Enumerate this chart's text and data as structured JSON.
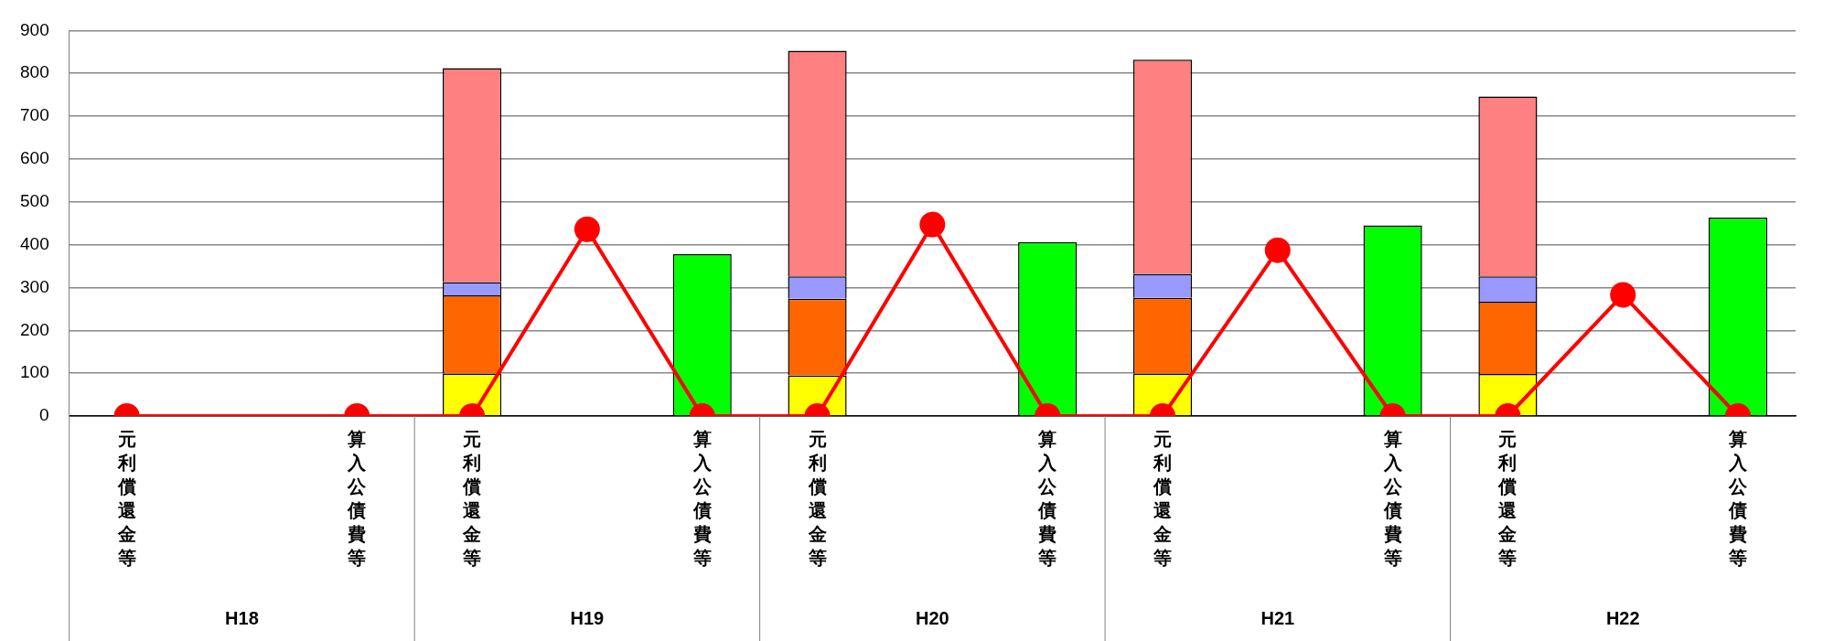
{
  "chart_data": {
    "type": "bar",
    "stacked": true,
    "categories": [
      "元利償還金等",
      null,
      "算入公債費等",
      "元利償還金等",
      null,
      "算入公債費等",
      "元利償還金等",
      null,
      "算入公債費等",
      "元利償還金等",
      null,
      "算入公債費等",
      "元利償還金等",
      null,
      "算入公債費等"
    ],
    "series": [
      {
        "color": "#ffff00",
        "values": [
          null,
          null,
          null,
          99,
          null,
          null,
          95,
          null,
          null,
          99,
          null,
          null,
          98,
          null,
          null
        ]
      },
      {
        "color": "#ff6600",
        "values": [
          null,
          null,
          null,
          183,
          null,
          null,
          179,
          null,
          null,
          177,
          null,
          null,
          169,
          null,
          null
        ]
      },
      {
        "color": "#9999ff",
        "values": [
          null,
          null,
          null,
          31,
          null,
          null,
          52,
          null,
          null,
          56,
          null,
          null,
          59,
          null,
          null
        ]
      },
      {
        "color": "#ff8080",
        "values": [
          null,
          null,
          null,
          499,
          null,
          null,
          527,
          null,
          null,
          500,
          null,
          null,
          420,
          null,
          null
        ]
      },
      {
        "color": "#00ff00",
        "values": [
          null,
          null,
          null,
          null,
          null,
          378,
          null,
          null,
          406,
          null,
          null,
          445,
          null,
          null,
          463
        ]
      },
      {
        "type": "line",
        "color": "#ff0000",
        "marker": "circle",
        "line_style": "solid",
        "values": [
          0,
          null,
          0,
          0,
          436,
          0,
          0,
          447,
          0,
          0,
          387,
          0,
          0,
          283,
          0
        ]
      }
    ],
    "ylim": [
      0,
      900
    ],
    "yticks": [
      0,
      100,
      200,
      300,
      400,
      500,
      600,
      700,
      800,
      900
    ],
    "grid": "y",
    "legend": false,
    "annotations": [
      "H18",
      "H19",
      "H20",
      "H21",
      "H22"
    ]
  }
}
